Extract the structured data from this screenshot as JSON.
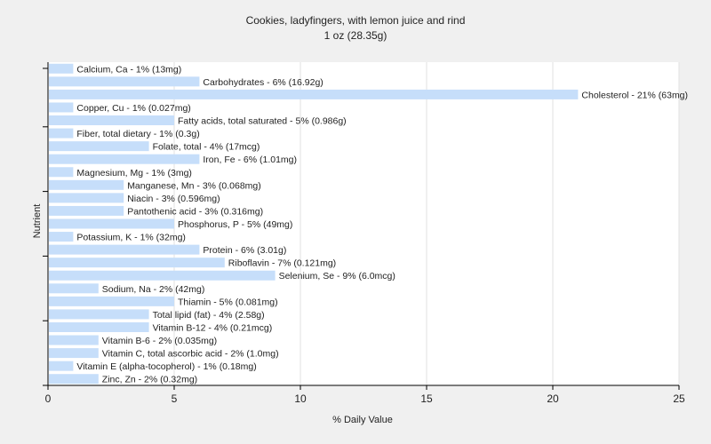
{
  "chart_data": {
    "type": "bar",
    "orientation": "horizontal",
    "title": "Cookies, ladyfingers, with lemon juice and rind",
    "subtitle": "1 oz (28.35g)",
    "xlabel": "% Daily Value",
    "ylabel": "Nutrient",
    "xlim": [
      0,
      25
    ],
    "xticks": [
      0,
      5,
      10,
      15,
      20,
      25
    ],
    "grid": true,
    "bar_color": "#c6defa",
    "categories": [
      "Calcium, Ca",
      "Carbohydrates",
      "Cholesterol",
      "Copper, Cu",
      "Fatty acids, total saturated",
      "Fiber, total dietary",
      "Folate, total",
      "Iron, Fe",
      "Magnesium, Mg",
      "Manganese, Mn",
      "Niacin",
      "Pantothenic acid",
      "Phosphorus, P",
      "Potassium, K",
      "Protein",
      "Riboflavin",
      "Selenium, Se",
      "Sodium, Na",
      "Thiamin",
      "Total lipid (fat)",
      "Vitamin B-12",
      "Vitamin B-6",
      "Vitamin C, total ascorbic acid",
      "Vitamin E (alpha-tocopherol)",
      "Zinc, Zn"
    ],
    "values": [
      1,
      6,
      21,
      1,
      5,
      1,
      4,
      6,
      1,
      3,
      3,
      3,
      5,
      1,
      6,
      7,
      9,
      2,
      5,
      4,
      4,
      2,
      2,
      1,
      2
    ],
    "labels": [
      "Calcium, Ca - 1% (13mg)",
      "Carbohydrates - 6% (16.92g)",
      "Cholesterol - 21% (63mg)",
      "Copper, Cu - 1% (0.027mg)",
      "Fatty acids, total saturated - 5% (0.986g)",
      "Fiber, total dietary - 1% (0.3g)",
      "Folate, total - 4% (17mcg)",
      "Iron, Fe - 6% (1.01mg)",
      "Magnesium, Mg - 1% (3mg)",
      "Manganese, Mn - 3% (0.068mg)",
      "Niacin - 3% (0.596mg)",
      "Pantothenic acid - 3% (0.316mg)",
      "Phosphorus, P - 5% (49mg)",
      "Potassium, K - 1% (32mg)",
      "Protein - 6% (3.01g)",
      "Riboflavin - 7% (0.121mg)",
      "Selenium, Se - 9% (6.0mcg)",
      "Sodium, Na - 2% (42mg)",
      "Thiamin - 5% (0.081mg)",
      "Total lipid (fat) - 4% (2.58g)",
      "Vitamin B-12 - 4% (0.21mcg)",
      "Vitamin B-6 - 2% (0.035mg)",
      "Vitamin C, total ascorbic acid - 2% (1.0mg)",
      "Vitamin E (alpha-tocopherol) - 1% (0.18mg)",
      "Zinc, Zn - 2% (0.32mg)"
    ]
  }
}
